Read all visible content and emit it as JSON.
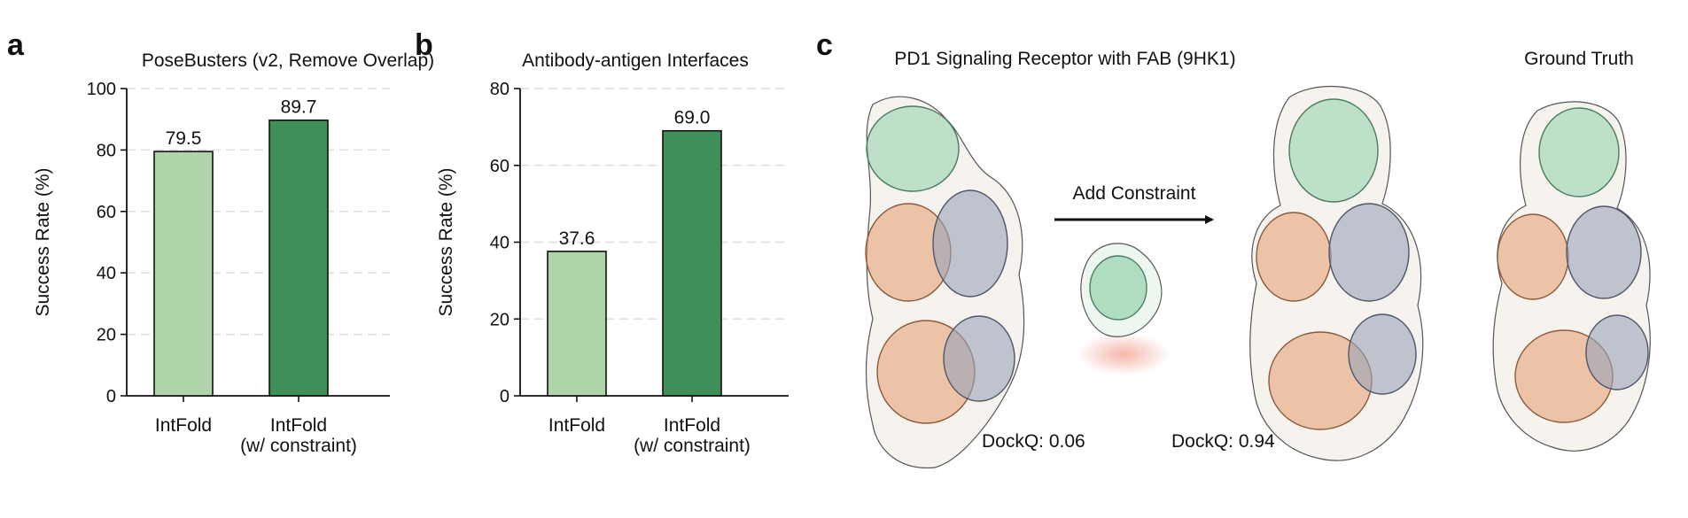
{
  "panels": {
    "a": {
      "letter": "a"
    },
    "b": {
      "letter": "b"
    },
    "c": {
      "letter": "c",
      "title": "PD1 Signaling Receptor with FAB (9HK1)",
      "ground_truth_label": "Ground Truth",
      "arrow_label": "Add Constraint",
      "dockq_before": "DockQ: 0.06",
      "dockq_after": "DockQ: 0.94"
    }
  },
  "colors": {
    "light_green": "#b0d4a9",
    "dark_green": "#3f8f58",
    "structure_green": "#8fcfa8",
    "structure_orange": "#e8a478",
    "structure_slate": "#9aa3b8",
    "constraint_glow": "#f3a89a",
    "grid": "#dddddd"
  },
  "chart_data": [
    {
      "id": "a",
      "type": "bar",
      "title": "PoseBusters (v2, Remove Overlap)",
      "xlabel": "",
      "ylabel": "Success Rate (%)",
      "categories": [
        [
          "IntFold"
        ],
        [
          "IntFold",
          "(w/ constraint)"
        ]
      ],
      "values": [
        79.5,
        89.7
      ],
      "value_labels": [
        "79.5",
        "89.7"
      ],
      "bar_colors": [
        "#b0d4a9",
        "#3f8f58"
      ],
      "ylim": [
        0,
        100
      ],
      "yticks": [
        0,
        20,
        40,
        60,
        80,
        100
      ],
      "grid": "horizontal dashed"
    },
    {
      "id": "b",
      "type": "bar",
      "title": "Antibody-antigen Interfaces",
      "xlabel": "",
      "ylabel": "Success Rate (%)",
      "categories": [
        [
          "IntFold"
        ],
        [
          "IntFold",
          "(w/ constraint)"
        ]
      ],
      "values": [
        37.6,
        69.0
      ],
      "value_labels": [
        "37.6",
        "69.0"
      ],
      "bar_colors": [
        "#b0d4a9",
        "#3f8f58"
      ],
      "ylim": [
        0,
        80
      ],
      "yticks": [
        0,
        20,
        40,
        60,
        80
      ],
      "grid": "horizontal dashed"
    }
  ]
}
